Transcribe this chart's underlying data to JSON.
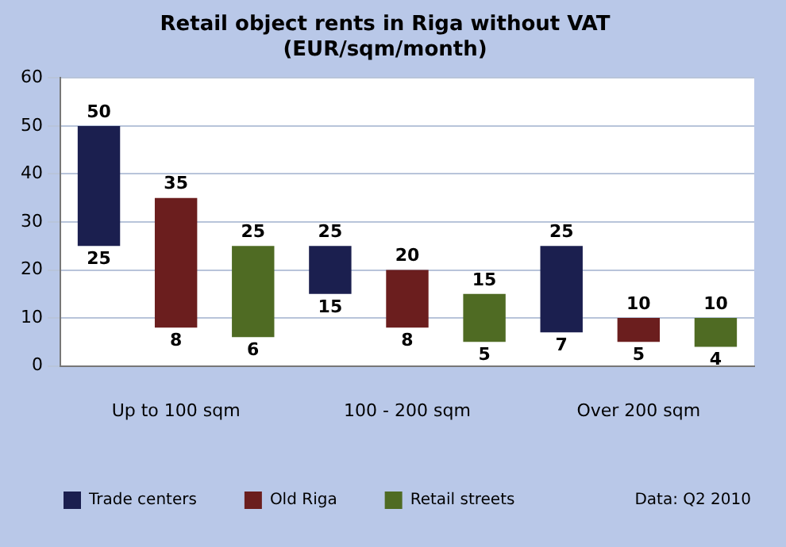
{
  "chart_data": {
    "type": "bar",
    "title": "Retail object rents in Riga without VAT",
    "subtitle": "(EUR/sqm/month)",
    "categories": [
      "Up to 100 sqm",
      "100 - 200 sqm",
      "Over 200 sqm"
    ],
    "series": [
      {
        "name": "Trade centers",
        "color": "#1b1f4f",
        "base": [
          25,
          15,
          7
        ],
        "values": [
          25,
          10,
          18
        ],
        "value_labels": [
          "50",
          "25",
          "25"
        ]
      },
      {
        "name": "Old Riga",
        "color": "#6b1e1e",
        "base": [
          8,
          8,
          5
        ],
        "values": [
          27,
          12,
          5
        ],
        "value_labels": [
          "35",
          "20",
          "10"
        ]
      },
      {
        "name": "Retail streets",
        "color": "#4f6b23",
        "base": [
          6,
          5,
          4
        ],
        "values": [
          19,
          10,
          6
        ],
        "value_labels": [
          "25",
          "15",
          "10"
        ]
      }
    ],
    "ylim": [
      0,
      60
    ],
    "yticks": [
      0,
      10,
      20,
      30,
      40,
      50,
      60
    ],
    "grid": "y",
    "legend": "bottom",
    "annotations": [
      "Data: Q2 2010",
      "25",
      "8",
      "6",
      "15",
      "8",
      "5",
      "7",
      "5",
      "4"
    ]
  }
}
